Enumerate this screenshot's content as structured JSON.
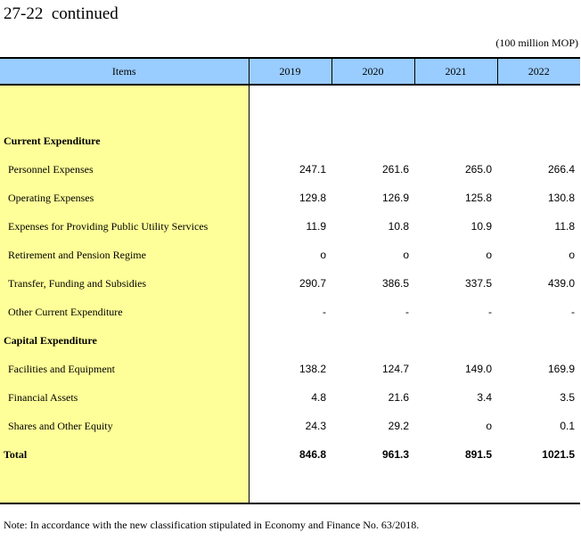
{
  "title": "27-22  continued",
  "unit": "(100 million MOP)",
  "table": {
    "headers": [
      "Items",
      "2019",
      "2020",
      "2021",
      "2022"
    ],
    "rows": [
      {
        "label": "Current Expenditure",
        "type": "head",
        "values": [
          "",
          "",
          "",
          ""
        ]
      },
      {
        "label": "Personnel Expenses",
        "type": "sub",
        "values": [
          "247.1",
          "261.6",
          "265.0",
          "266.4"
        ]
      },
      {
        "label": "Operating Expenses",
        "type": "sub",
        "values": [
          "129.8",
          "126.9",
          "125.8",
          "130.8"
        ]
      },
      {
        "label": "Expenses for Providing Public Utility Services",
        "type": "sub",
        "values": [
          "11.9",
          "10.8",
          "10.9",
          "11.8"
        ]
      },
      {
        "label": "Retirement and Pension Regime",
        "type": "sub",
        "values": [
          "o",
          "o",
          "o",
          "o"
        ]
      },
      {
        "label": "Transfer, Funding and Subsidies",
        "type": "sub",
        "values": [
          "290.7",
          "386.5",
          "337.5",
          "439.0"
        ]
      },
      {
        "label": "Other Current Expenditure",
        "type": "sub",
        "values": [
          "-",
          "-",
          "-",
          "-"
        ]
      },
      {
        "label": "Capital Expenditure",
        "type": "head",
        "values": [
          "",
          "",
          "",
          ""
        ]
      },
      {
        "label": "Facilities and Equipment",
        "type": "sub",
        "values": [
          "138.2",
          "124.7",
          "149.0",
          "169.9"
        ]
      },
      {
        "label": "Financial Assets",
        "type": "sub",
        "values": [
          "4.8",
          "21.6",
          "3.4",
          "3.5"
        ]
      },
      {
        "label": "Shares and Other Equity",
        "type": "sub",
        "values": [
          "24.3",
          "29.2",
          "o",
          "0.1"
        ]
      },
      {
        "label": "Total",
        "type": "total",
        "values": [
          "846.8",
          "961.3",
          "891.5",
          "1021.5"
        ]
      }
    ]
  },
  "note": "Note: In accordance with the new classification stipulated in Economy and Finance No. 63/2018.",
  "colors": {
    "header_bg": "#99ccff",
    "label_bg": "#ffff99"
  }
}
